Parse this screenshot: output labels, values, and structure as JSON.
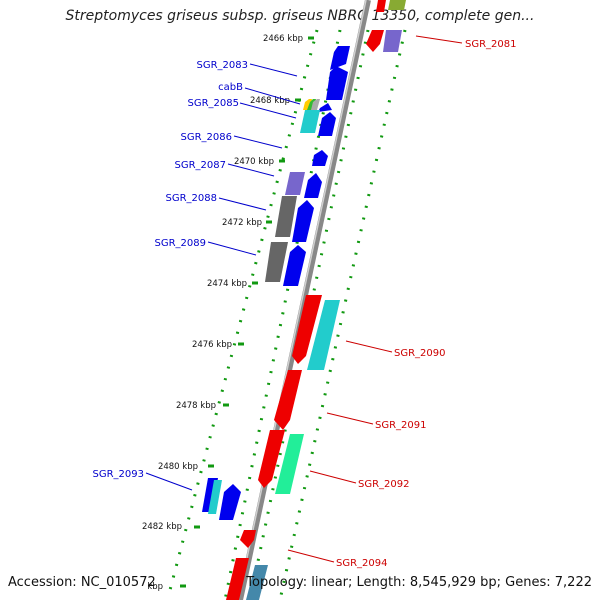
{
  "title": "Streptomyces griseus subsp. griseus NBRC 13350, complete gen...",
  "footer": {
    "accession": "Accession: NC_010572",
    "summary": "Topology: linear; Length: 8,545,929 bp; Genes: 7,222"
  },
  "kbp_labels": [
    "2466 kbp",
    "2468 kbp",
    "2470 kbp",
    "2472 kbp",
    "2474 kbp",
    "2476 kbp",
    "2478 kbp",
    "2480 kbp",
    "2482 kbp",
    "kbp"
  ],
  "left_genes": [
    "SGR_2083",
    "cabB",
    "SGR_2085",
    "SGR_2086",
    "SGR_2087",
    "SGR_2088",
    "SGR_2089",
    "SGR_2093"
  ],
  "right_genes": [
    "SGR_2081",
    "SGR_2090",
    "SGR_2091",
    "SGR_2092",
    "SGR_2094"
  ],
  "colors": {
    "forward_label": "#0000cc",
    "reverse_label": "#cc0000",
    "forward_gene": "#0000ee",
    "reverse_gene": "#ee0000",
    "cyan_gene": "#22cccc",
    "gray_gene": "#666666",
    "purple_gene": "#7766cc",
    "green_gene": "#22ee99",
    "backbone": "#888888",
    "dotted": "#119911"
  }
}
